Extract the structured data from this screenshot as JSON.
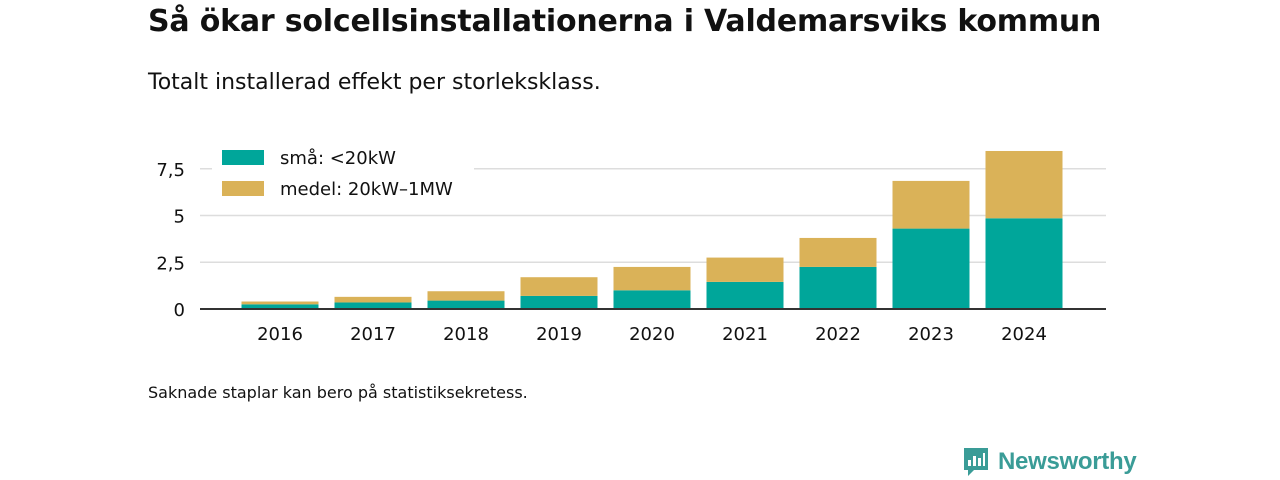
{
  "title": "Så ökar solcellsinstallationerna i Valdemarsviks kommun",
  "subtitle": "Totalt installerad effekt per storleksklass.",
  "note": "Saknade staplar kan bero på statistiksekretess.",
  "brand": {
    "name": "Newsworthy",
    "logo_icon": "newsworthy-logo-icon"
  },
  "colors": {
    "small": "#00a69a",
    "medium": "#dab258",
    "grid": "#dddddd",
    "axis": "#333333"
  },
  "chart_data": {
    "type": "bar",
    "stacked": true,
    "categories": [
      "2016",
      "2017",
      "2018",
      "2019",
      "2020",
      "2021",
      "2022",
      "2023",
      "2024"
    ],
    "series": [
      {
        "name": "små: <20kW",
        "color": "#00a69a",
        "values": [
          0.25,
          0.35,
          0.45,
          0.7,
          1.0,
          1.45,
          2.25,
          4.3,
          4.85
        ]
      },
      {
        "name": "medel: 20kW–1MW",
        "color": "#dab258",
        "values": [
          0.15,
          0.3,
          0.5,
          1.0,
          1.25,
          1.3,
          1.55,
          2.55,
          3.6
        ]
      }
    ],
    "yticks": [
      0,
      2.5,
      5,
      7.5
    ],
    "ytick_labels": [
      "0",
      "2,5",
      "5",
      "7,5"
    ],
    "ylim": [
      0,
      8.6
    ],
    "xlabel": "",
    "ylabel": "",
    "grid": "horizontal",
    "legend_position": "top-left"
  }
}
